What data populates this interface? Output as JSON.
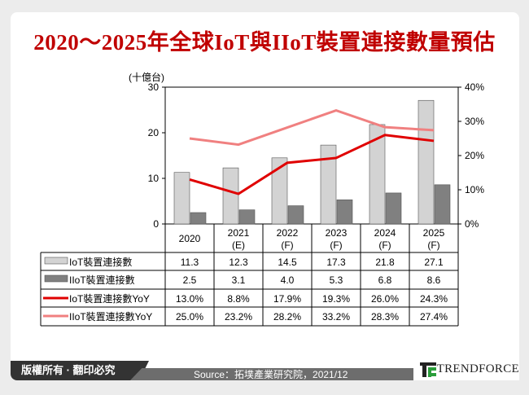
{
  "title": "2020～2025年全球IoT與IIoT裝置連接數量預估",
  "footer": {
    "copyright": "版權所有 · 翻印必究",
    "source": "Source：拓墣產業研究院，2021/12",
    "brand": "TrendForce"
  },
  "colors": {
    "title": "#c00000",
    "iot_bar": "#d3d3d3",
    "iiot_bar": "#808080",
    "iot_yoy": "#e00000",
    "iiot_yoy": "#f08080"
  },
  "chart_data": {
    "type": "bar+line",
    "categories": [
      "2020",
      "2021\n(E)",
      "2022\n(F)",
      "2023\n(F)",
      "2024\n(F)",
      "2025\n(F)"
    ],
    "ylabel": "(十億台)",
    "ylim": [
      0,
      30
    ],
    "yticks": [
      0,
      10,
      20,
      30
    ],
    "y2lim": [
      0,
      40
    ],
    "y2ticks": [
      "0%",
      "10%",
      "20%",
      "30%",
      "40%"
    ],
    "series": [
      {
        "name": "IoT裝置連接數",
        "type": "bar",
        "axis": "left",
        "values": [
          11.3,
          12.3,
          14.5,
          17.3,
          21.8,
          27.1
        ],
        "labels": [
          "11.3",
          "12.3",
          "14.5",
          "17.3",
          "21.8",
          "27.1"
        ]
      },
      {
        "name": "IIoT裝置連接數",
        "type": "bar",
        "axis": "left",
        "values": [
          2.5,
          3.1,
          4.0,
          5.3,
          6.8,
          8.6
        ],
        "labels": [
          "2.5",
          "3.1",
          "4.0",
          "5.3",
          "6.8",
          "8.6"
        ]
      },
      {
        "name": "IoT裝置連接數YoY",
        "type": "line",
        "axis": "right",
        "values": [
          13.0,
          8.8,
          17.9,
          19.3,
          26.0,
          24.3
        ],
        "labels": [
          "13.0%",
          "8.8%",
          "17.9%",
          "19.3%",
          "26.0%",
          "24.3%"
        ]
      },
      {
        "name": "IIoT裝置連接數YoY",
        "type": "line",
        "axis": "right",
        "values": [
          25.0,
          23.2,
          28.2,
          33.2,
          28.3,
          27.4
        ],
        "labels": [
          "25.0%",
          "23.2%",
          "28.2%",
          "33.2%",
          "28.3%",
          "27.4%"
        ]
      }
    ],
    "legend": "data-table"
  }
}
